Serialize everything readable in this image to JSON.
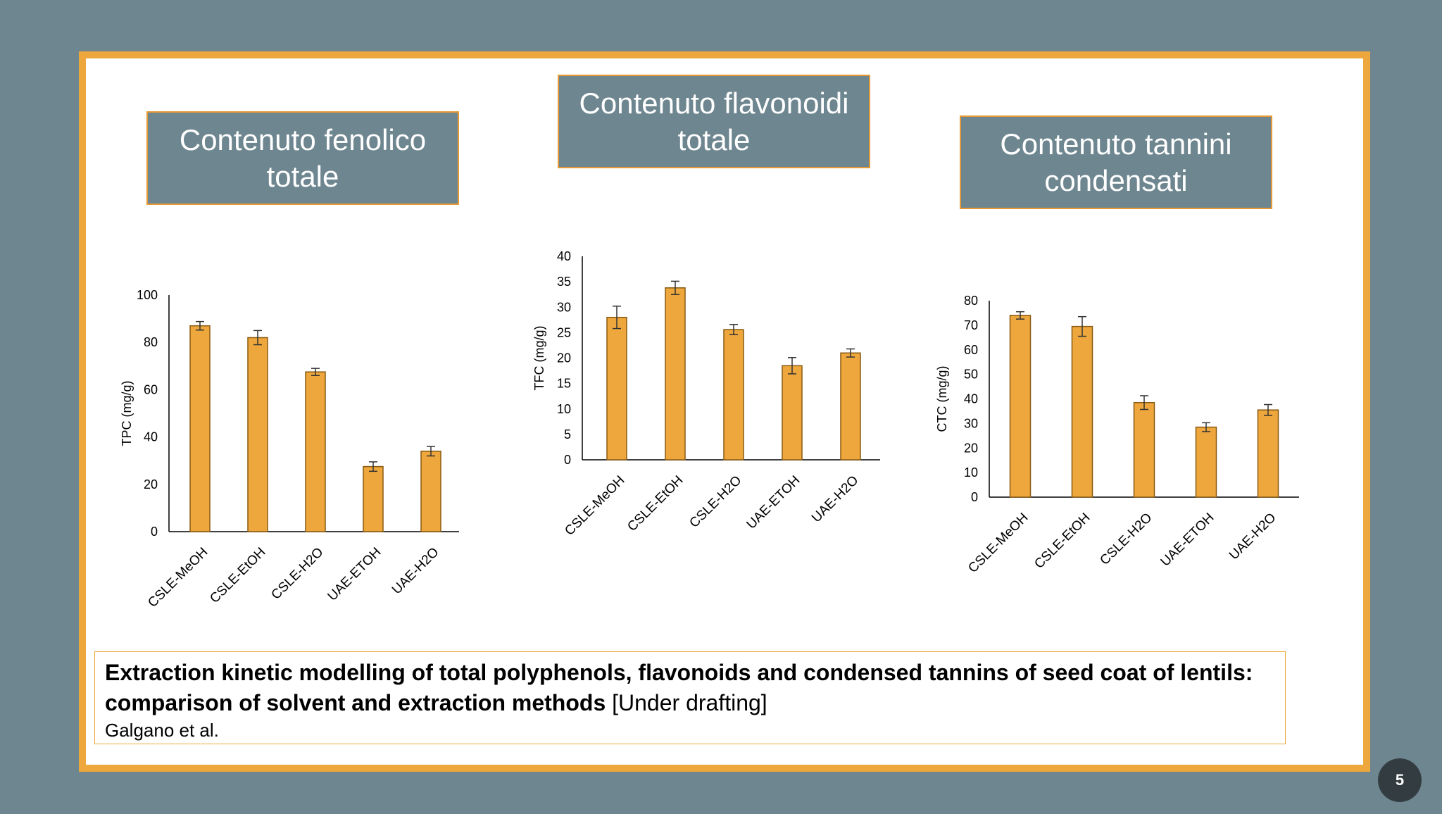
{
  "page_number": "5",
  "colors": {
    "background": "#6e8690",
    "frame": "#eda73c",
    "bar": "#eda73c",
    "bar_stroke": "#8a5a12",
    "title_box": "#6e8690"
  },
  "titles": {
    "tpc": "Contenuto fenolico totale",
    "tfc": "Contenuto flavonoidi totale",
    "ctc": "Contenuto tannini condensati"
  },
  "caption": {
    "title": "Extraction kinetic modelling of total polyphenols, flavonoids and condensed tannins of seed coat of lentils: comparison of solvent and extraction methods",
    "note": "[Under drafting]",
    "authors": "Galgano et al."
  },
  "chart_data": [
    {
      "type": "bar",
      "title": "Contenuto fenolico totale",
      "ylabel": "TPC (mg/g)",
      "xlabel": "",
      "categories": [
        "CSLE-MeOH",
        "CSLE-EtOH",
        "CSLE-H2O",
        "UAE-ETOH",
        "UAE-H2O"
      ],
      "values": [
        87,
        82,
        67.5,
        27.5,
        34
      ],
      "errors": [
        1.8,
        3,
        1.5,
        2,
        2
      ],
      "ylim": [
        0,
        100
      ],
      "yticks": [
        0,
        20,
        40,
        60,
        80,
        100
      ]
    },
    {
      "type": "bar",
      "title": "Contenuto flavonoidi totale",
      "ylabel": "TFC (mg/g)",
      "xlabel": "",
      "categories": [
        "CSLE-MeOH",
        "CSLE-EtOH",
        "CSLE-H2O",
        "UAE-ETOH",
        "UAE-H2O"
      ],
      "values": [
        28,
        33.8,
        25.6,
        18.5,
        21
      ],
      "errors": [
        2.2,
        1.3,
        1,
        1.6,
        0.8
      ],
      "ylim": [
        0,
        40
      ],
      "yticks": [
        0,
        5,
        10,
        15,
        20,
        25,
        30,
        35,
        40
      ]
    },
    {
      "type": "bar",
      "title": "Contenuto tannini condensati",
      "ylabel": "CTC (mg/g)",
      "xlabel": "",
      "categories": [
        "CSLE-MeOH",
        "CSLE-EtOH",
        "CSLE-H2O",
        "UAE-ETOH",
        "UAE-H2O"
      ],
      "values": [
        74,
        69.5,
        38.5,
        28.5,
        35.5
      ],
      "errors": [
        1.5,
        4,
        2.8,
        1.8,
        2.2
      ],
      "ylim": [
        0,
        80
      ],
      "yticks": [
        0,
        10,
        20,
        30,
        40,
        50,
        60,
        70,
        80
      ]
    }
  ]
}
